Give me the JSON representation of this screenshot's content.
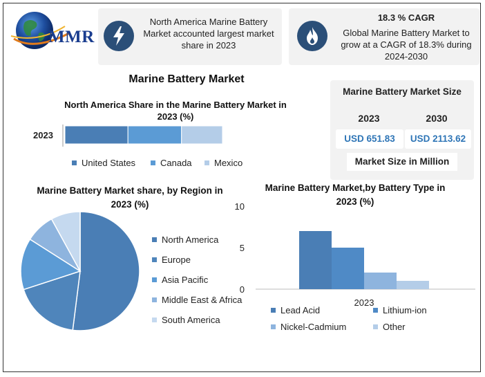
{
  "logo": {
    "text": "MMR"
  },
  "card1": {
    "text": "North America Marine Battery Market accounted largest market share in 2023",
    "icon": "lightning-icon"
  },
  "card2": {
    "title": "18.3 % CAGR",
    "text": "Global Marine Battery Market to grow at a CAGR of 18.3% during 2024-2030",
    "icon": "flame-icon"
  },
  "main_title": "Marine Battery Market",
  "size_panel": {
    "title": "Marine Battery Market Size",
    "years": [
      "2023",
      "2030"
    ],
    "values": [
      "USD 651.83",
      "USD 2113.62"
    ],
    "footer": "Market Size in Million"
  },
  "chart_data": [
    {
      "type": "bar",
      "orientation": "horizontal-stacked",
      "title": "North America Share in the Marine Battery Market in 2023 (%)",
      "categories": [
        "2023"
      ],
      "series": [
        {
          "name": "United States",
          "values": [
            40
          ],
          "color": "#4a7eb5"
        },
        {
          "name": "Canada",
          "values": [
            34
          ],
          "color": "#5b9bd5"
        },
        {
          "name": "Mexico",
          "values": [
            26
          ],
          "color": "#b4cde8"
        }
      ],
      "legend": "bottom"
    },
    {
      "type": "pie",
      "title": "Marine Battery Market share, by Region in 2023 (%)",
      "labels": [
        "North America",
        "Europe",
        "Asia Pacific",
        "Middle East & Africa",
        "South America"
      ],
      "values": [
        52,
        18,
        14,
        8,
        8
      ],
      "colors": [
        "#4a7eb5",
        "#4f85bb",
        "#5b9bd5",
        "#8eb4de",
        "#c5d9ef"
      ],
      "legend": "right"
    },
    {
      "type": "bar",
      "title": "Marine Battery Market,by Battery Type in 2023 (%)",
      "categories": [
        "2023"
      ],
      "series": [
        {
          "name": "Lead Acid",
          "values": [
            7
          ],
          "color": "#4a7eb5"
        },
        {
          "name": "Lithium-ion",
          "values": [
            5
          ],
          "color": "#4f8ac6"
        },
        {
          "name": "Nickel-Cadmium",
          "values": [
            2
          ],
          "color": "#8eb4de"
        },
        {
          "name": "Other",
          "values": [
            1
          ],
          "color": "#b4cde8"
        }
      ],
      "ylim": [
        0,
        10
      ],
      "yticks": [
        "10",
        "5",
        "0"
      ],
      "legend": "bottom"
    }
  ]
}
